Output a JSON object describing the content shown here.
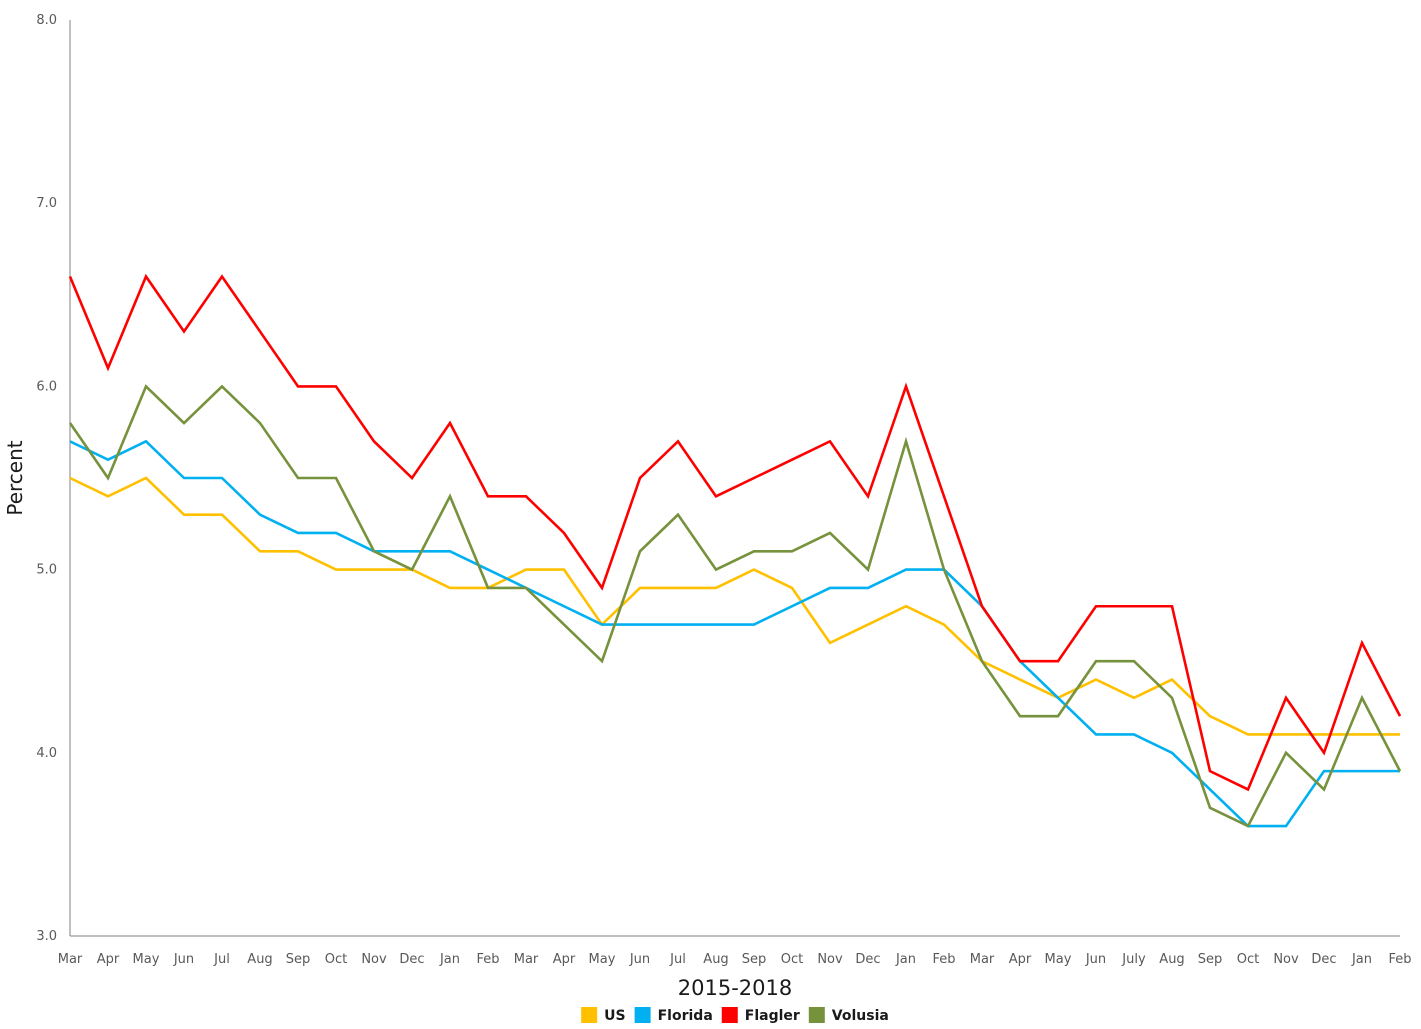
{
  "chart_data": {
    "type": "line",
    "xlabel": "2015-2018",
    "ylabel": "Percent",
    "ylim": [
      3.0,
      8.0
    ],
    "yticks": [
      "3.0",
      "4.0",
      "5.0",
      "6.0",
      "7.0",
      "8.0"
    ],
    "grid": false,
    "legend_position": "bottom",
    "categories": [
      "Mar",
      "Apr",
      "May",
      "Jun",
      "Jul",
      "Aug",
      "Sep",
      "Oct",
      "Nov",
      "Dec",
      "Jan",
      "Feb",
      "Mar",
      "Apr",
      "May",
      "Jun",
      "Jul",
      "Aug",
      "Sep",
      "Oct",
      "Nov",
      "Dec",
      "Jan",
      "Feb",
      "Mar",
      "Apr",
      "May",
      "Jun",
      "July",
      "Aug",
      "Sep",
      "Oct",
      "Nov",
      "Dec",
      "Jan",
      "Feb"
    ],
    "series": [
      {
        "name": "US",
        "color": "#FFC000",
        "values": [
          5.5,
          5.4,
          5.5,
          5.3,
          5.3,
          5.1,
          5.1,
          5.0,
          5.0,
          5.0,
          4.9,
          4.9,
          5.0,
          5.0,
          4.7,
          4.9,
          4.9,
          4.9,
          5.0,
          4.9,
          4.6,
          4.7,
          4.8,
          4.7,
          4.5,
          4.4,
          4.3,
          4.4,
          4.3,
          4.4,
          4.2,
          4.1,
          4.1,
          4.1,
          4.1,
          4.1
        ]
      },
      {
        "name": "Florida",
        "color": "#00B0F0",
        "values": [
          5.7,
          5.6,
          5.7,
          5.5,
          5.5,
          5.3,
          5.2,
          5.2,
          5.1,
          5.1,
          5.1,
          5.0,
          4.9,
          4.8,
          4.7,
          4.7,
          4.7,
          4.7,
          4.7,
          4.8,
          4.9,
          4.9,
          5.0,
          5.0,
          4.8,
          4.5,
          4.3,
          4.1,
          4.1,
          4.0,
          3.8,
          3.6,
          3.6,
          3.9,
          3.9,
          3.9
        ]
      },
      {
        "name": "Flagler",
        "color": "#FF0000",
        "values": [
          6.6,
          6.1,
          6.6,
          6.3,
          6.6,
          6.3,
          6.0,
          6.0,
          5.7,
          5.5,
          5.8,
          5.4,
          5.4,
          5.2,
          4.9,
          5.5,
          5.7,
          5.4,
          5.5,
          5.6,
          5.7,
          5.4,
          6.0,
          5.4,
          4.8,
          4.5,
          4.5,
          4.8,
          4.8,
          4.8,
          3.9,
          3.8,
          4.3,
          4.0,
          4.6,
          4.2
        ]
      },
      {
        "name": "Volusia",
        "color": "#76923C",
        "values": [
          5.8,
          5.5,
          6.0,
          5.8,
          6.0,
          5.8,
          5.5,
          5.5,
          5.1,
          5.0,
          5.4,
          4.9,
          4.9,
          4.7,
          4.5,
          5.1,
          5.3,
          5.0,
          5.1,
          5.1,
          5.2,
          5.0,
          5.7,
          5.0,
          4.5,
          4.2,
          4.2,
          4.5,
          4.5,
          4.3,
          3.7,
          3.6,
          4.0,
          3.8,
          4.3,
          3.9
        ]
      }
    ]
  }
}
